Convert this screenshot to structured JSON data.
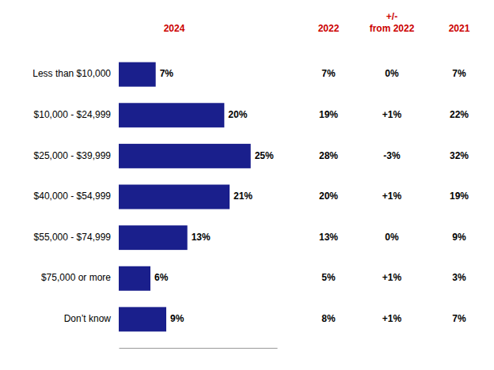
{
  "chart_data": {
    "type": "bar",
    "orientation": "horizontal",
    "categories": [
      "Less than $10,000",
      "$10,000 - $24,999",
      "$25,000 - $39,999",
      "$40,000 - $54,999",
      "$55,000 - $74,999",
      "$75,000 or more",
      "Don’t know"
    ],
    "values": [
      7,
      20,
      25,
      21,
      13,
      6,
      9
    ],
    "value_labels": [
      "7%",
      "20%",
      "25%",
      "21%",
      "13%",
      "6%",
      "9%"
    ],
    "color": "#1a1f8c",
    "data_labels": true,
    "xlim": [
      0,
      30
    ],
    "tick_labels": false,
    "grid": false,
    "columns": [
      {
        "header": [
          "2024"
        ],
        "color": "#cc0000"
      },
      {
        "header": [
          "2022"
        ],
        "color": "#cc0000",
        "labels": [
          "7%",
          "19%",
          "28%",
          "20%",
          "13%",
          "5%",
          "8%"
        ]
      },
      {
        "header": [
          "+/-",
          "from 2022"
        ],
        "color": "#cc0000",
        "labels": [
          "0%",
          "+1%",
          "-3%",
          "+1%",
          "0%",
          "+1%",
          "+1%"
        ]
      },
      {
        "header": [
          "2021"
        ],
        "color": "#cc0000",
        "labels": [
          "7%",
          "22%",
          "32%",
          "19%",
          "9%",
          "3%",
          "7%"
        ]
      }
    ]
  }
}
